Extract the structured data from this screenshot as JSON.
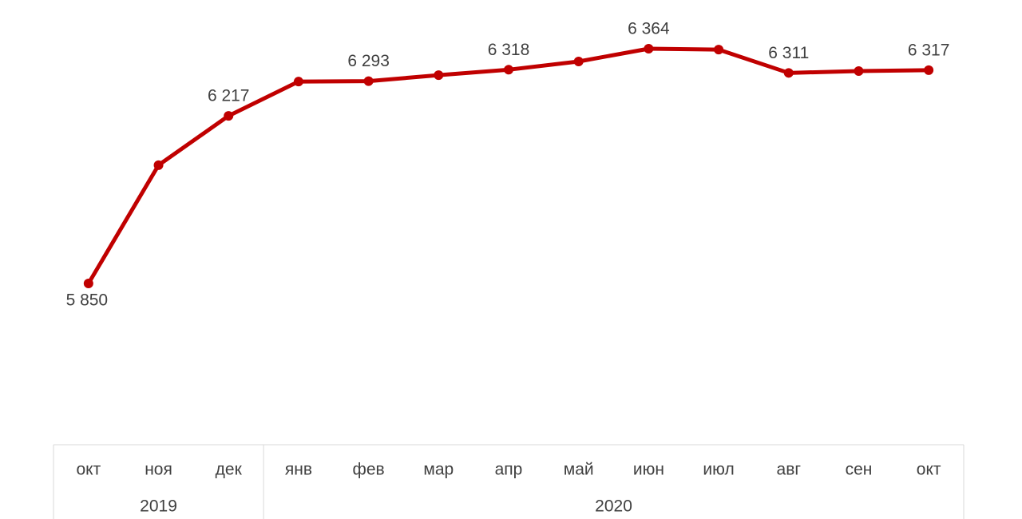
{
  "chart_data": {
    "type": "line",
    "categories": [
      "окт",
      "ноя",
      "дек",
      "янв",
      "фев",
      "мар",
      "апр",
      "май",
      "июн",
      "июл",
      "авг",
      "сен",
      "окт"
    ],
    "groups": [
      {
        "label": "2019",
        "span": 3
      },
      {
        "label": "2020",
        "span": 10
      }
    ],
    "series": [
      {
        "color": "#c00000",
        "values": [
          5850,
          6109,
          6217,
          6292,
          6293,
          6306,
          6318,
          6336,
          6364,
          6362,
          6311,
          6315,
          6317
        ],
        "value_labels": [
          "5 850",
          null,
          "6 217",
          null,
          "6 293",
          null,
          "6 318",
          null,
          "6 364",
          null,
          "6 311",
          null,
          "6 317"
        ]
      }
    ]
  }
}
